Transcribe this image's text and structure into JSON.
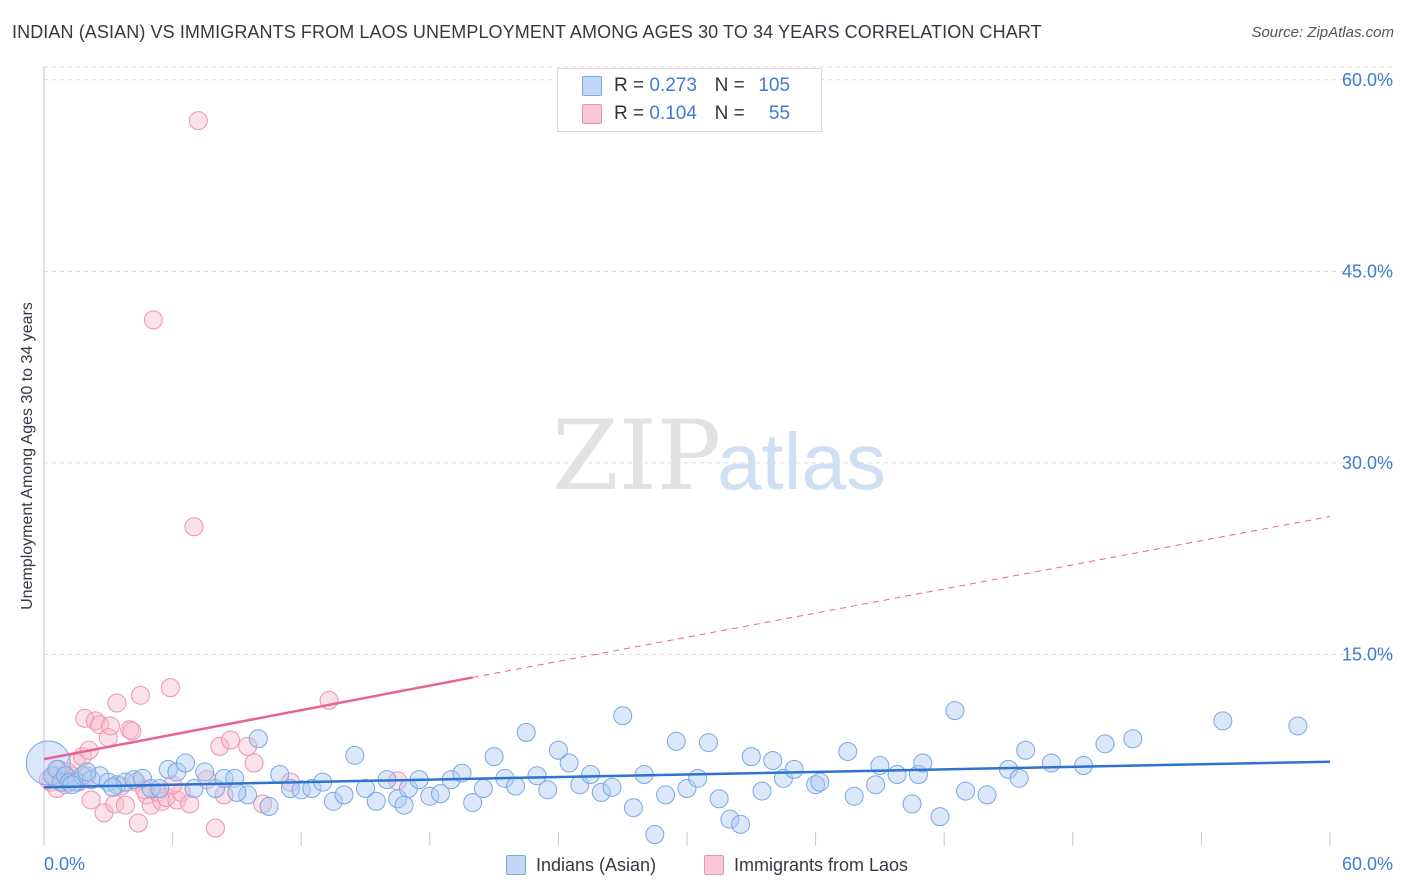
{
  "title": "INDIAN (ASIAN) VS IMMIGRANTS FROM LAOS UNEMPLOYMENT AMONG AGES 30 TO 34 YEARS CORRELATION CHART",
  "source": "Source: ZipAtlas.com",
  "watermark": {
    "zip": "ZIP",
    "atlas": "atlas"
  },
  "legend": {
    "rows": [
      {
        "r_label": "R =",
        "r_value": "0.273",
        "n_label": "N =",
        "n_value": "105"
      },
      {
        "r_label": "R =",
        "r_value": "0.104",
        "n_label": "N =",
        "n_value": "55"
      }
    ]
  },
  "colors": {
    "blue_fill": "#aecbf2",
    "blue_stroke": "#7aa7e6",
    "blue_line": "#2f73d0",
    "pink_fill": "#f7bccd",
    "pink_stroke": "#ee93ae",
    "pink_line": "#e8648e",
    "tick_text": "#3d7bd4",
    "grid": "#dcdcdc"
  },
  "chart_data": {
    "type": "scatter",
    "title": "INDIAN (ASIAN) VS IMMIGRANTS FROM LAOS UNEMPLOYMENT AMONG AGES 30 TO 34 YEARS CORRELATION CHART",
    "xlabel": "",
    "ylabel": "Unemployment Among Ages 30 to 34 years",
    "xlim": [
      0,
      60
    ],
    "ylim": [
      0,
      62
    ],
    "x_tick_labels": [
      "0.0%",
      "60.0%"
    ],
    "y_ticks": [
      15,
      30,
      45,
      60
    ],
    "y_tick_labels": [
      "15.0%",
      "30.0%",
      "45.0%",
      "60.0%"
    ],
    "grid": true,
    "series": [
      {
        "name": "Indians (Asian)",
        "r": 0.273,
        "n": 105,
        "trend": {
          "x0": 0,
          "y0": 4.6,
          "x1": 60,
          "y1": 6.6
        },
        "points": [
          [
            0.2,
            6.5
          ],
          [
            0.4,
            5.5
          ],
          [
            0.6,
            6.0
          ],
          [
            0.8,
            5.0
          ],
          [
            1.0,
            5.5
          ],
          [
            1.2,
            5.0
          ],
          [
            1.5,
            5.0
          ],
          [
            1.8,
            5.5
          ],
          [
            2.2,
            5.2
          ],
          [
            2.6,
            5.5
          ],
          [
            3.0,
            5.0
          ],
          [
            3.4,
            4.8
          ],
          [
            3.8,
            5.0
          ],
          [
            4.2,
            5.2
          ],
          [
            4.6,
            5.3
          ],
          [
            5.0,
            4.5
          ],
          [
            5.4,
            4.5
          ],
          [
            5.8,
            6.0
          ],
          [
            6.2,
            5.8
          ],
          [
            6.6,
            6.5
          ],
          [
            7.0,
            4.5
          ],
          [
            7.5,
            5.8
          ],
          [
            8.0,
            4.5
          ],
          [
            8.4,
            5.3
          ],
          [
            8.9,
            5.3
          ],
          [
            9.5,
            4.0
          ],
          [
            10.0,
            8.4
          ],
          [
            10.5,
            3.1
          ],
          [
            11.0,
            5.6
          ],
          [
            11.5,
            4.5
          ],
          [
            12.0,
            4.4
          ],
          [
            12.5,
            4.5
          ],
          [
            13.0,
            5.0
          ],
          [
            13.5,
            3.5
          ],
          [
            14.0,
            4.0
          ],
          [
            14.5,
            7.1
          ],
          [
            15.0,
            4.5
          ],
          [
            15.5,
            3.5
          ],
          [
            16.0,
            5.2
          ],
          [
            16.5,
            3.7
          ],
          [
            17.0,
            4.5
          ],
          [
            17.5,
            5.2
          ],
          [
            18.0,
            3.9
          ],
          [
            18.5,
            4.1
          ],
          [
            19.0,
            5.2
          ],
          [
            19.5,
            5.7
          ],
          [
            20.0,
            3.4
          ],
          [
            20.5,
            4.5
          ],
          [
            21.0,
            7.0
          ],
          [
            21.5,
            5.3
          ],
          [
            22.0,
            4.7
          ],
          [
            22.5,
            8.9
          ],
          [
            23.0,
            5.5
          ],
          [
            23.5,
            4.4
          ],
          [
            24.0,
            7.5
          ],
          [
            24.5,
            6.5
          ],
          [
            25.0,
            4.8
          ],
          [
            25.5,
            5.6
          ],
          [
            26.0,
            4.2
          ],
          [
            26.5,
            4.6
          ],
          [
            27.0,
            10.2
          ],
          [
            27.5,
            3.0
          ],
          [
            28.0,
            5.6
          ],
          [
            28.5,
            0.9
          ],
          [
            29.0,
            4.0
          ],
          [
            29.5,
            8.2
          ],
          [
            30.0,
            4.5
          ],
          [
            30.5,
            5.3
          ],
          [
            31.0,
            8.1
          ],
          [
            31.5,
            3.7
          ],
          [
            32.0,
            2.1
          ],
          [
            32.5,
            1.7
          ],
          [
            33.0,
            7.0
          ],
          [
            33.5,
            4.3
          ],
          [
            34.0,
            6.7
          ],
          [
            34.5,
            5.3
          ],
          [
            35.0,
            6.0
          ],
          [
            36.0,
            4.8
          ],
          [
            36.2,
            5.0
          ],
          [
            37.5,
            7.4
          ],
          [
            37.8,
            3.9
          ],
          [
            38.8,
            4.8
          ],
          [
            39.0,
            6.3
          ],
          [
            39.8,
            5.6
          ],
          [
            40.5,
            3.3
          ],
          [
            40.8,
            5.6
          ],
          [
            41.0,
            6.5
          ],
          [
            41.8,
            2.3
          ],
          [
            42.5,
            10.6
          ],
          [
            43.0,
            4.3
          ],
          [
            44.0,
            4.0
          ],
          [
            45.0,
            6.0
          ],
          [
            45.5,
            5.3
          ],
          [
            45.8,
            7.5
          ],
          [
            47.0,
            6.5
          ],
          [
            48.5,
            6.3
          ],
          [
            49.5,
            8.0
          ],
          [
            50.8,
            8.4
          ],
          [
            55.0,
            9.8
          ],
          [
            58.5,
            9.4
          ],
          [
            1.3,
            4.8
          ],
          [
            2.0,
            5.8
          ],
          [
            3.2,
            4.6
          ],
          [
            9.0,
            4.2
          ],
          [
            16.8,
            3.2
          ]
        ]
      },
      {
        "name": "Immigrants from Laos",
        "r": 0.104,
        "n": 55,
        "trend": {
          "x0": 0,
          "y0": 6.8,
          "x1": 20,
          "y1": 13.2
        },
        "trend_dashed": {
          "x0": 20,
          "y0": 13.2,
          "x1": 60,
          "y1": 25.8
        },
        "points": [
          [
            0.3,
            5.0
          ],
          [
            0.5,
            5.5
          ],
          [
            0.7,
            6.0
          ],
          [
            0.9,
            5.2
          ],
          [
            1.1,
            5.8
          ],
          [
            1.3,
            5.5
          ],
          [
            1.5,
            6.5
          ],
          [
            1.6,
            5.0
          ],
          [
            1.8,
            7.0
          ],
          [
            1.9,
            10.0
          ],
          [
            2.0,
            5.5
          ],
          [
            2.2,
            3.6
          ],
          [
            2.4,
            9.8
          ],
          [
            2.6,
            9.5
          ],
          [
            2.8,
            2.6
          ],
          [
            3.0,
            8.5
          ],
          [
            3.1,
            9.4
          ],
          [
            3.3,
            3.3
          ],
          [
            3.4,
            11.2
          ],
          [
            3.6,
            4.7
          ],
          [
            3.8,
            3.2
          ],
          [
            4.0,
            9.1
          ],
          [
            4.1,
            9.0
          ],
          [
            4.3,
            5.0
          ],
          [
            4.4,
            1.8
          ],
          [
            4.5,
            11.8
          ],
          [
            4.8,
            4.0
          ],
          [
            5.0,
            3.2
          ],
          [
            5.1,
            41.2
          ],
          [
            5.3,
            4.2
          ],
          [
            5.5,
            3.5
          ],
          [
            5.7,
            3.8
          ],
          [
            5.9,
            12.4
          ],
          [
            6.2,
            3.6
          ],
          [
            6.4,
            4.2
          ],
          [
            6.8,
            3.3
          ],
          [
            7.0,
            25.0
          ],
          [
            7.2,
            56.8
          ],
          [
            7.6,
            5.2
          ],
          [
            8.0,
            1.4
          ],
          [
            8.2,
            7.8
          ],
          [
            8.4,
            4.0
          ],
          [
            8.7,
            8.3
          ],
          [
            9.5,
            7.8
          ],
          [
            9.8,
            6.5
          ],
          [
            10.2,
            3.3
          ],
          [
            11.5,
            5.0
          ],
          [
            13.3,
            11.4
          ],
          [
            16.5,
            5.1
          ],
          [
            0.6,
            4.5
          ],
          [
            1.0,
            4.8
          ],
          [
            2.1,
            7.5
          ],
          [
            4.7,
            4.4
          ],
          [
            6.0,
            4.8
          ],
          [
            0.2,
            5.2
          ]
        ]
      }
    ]
  },
  "axes": {
    "ylabel": "Unemployment Among Ages 30 to 34 years",
    "x_left": "0.0%",
    "x_right": "60.0%",
    "y_ticks": [
      "15.0%",
      "30.0%",
      "45.0%",
      "60.0%"
    ]
  },
  "bottom_legend": {
    "blue": "Indians (Asian)",
    "pink": "Immigrants from Laos"
  }
}
